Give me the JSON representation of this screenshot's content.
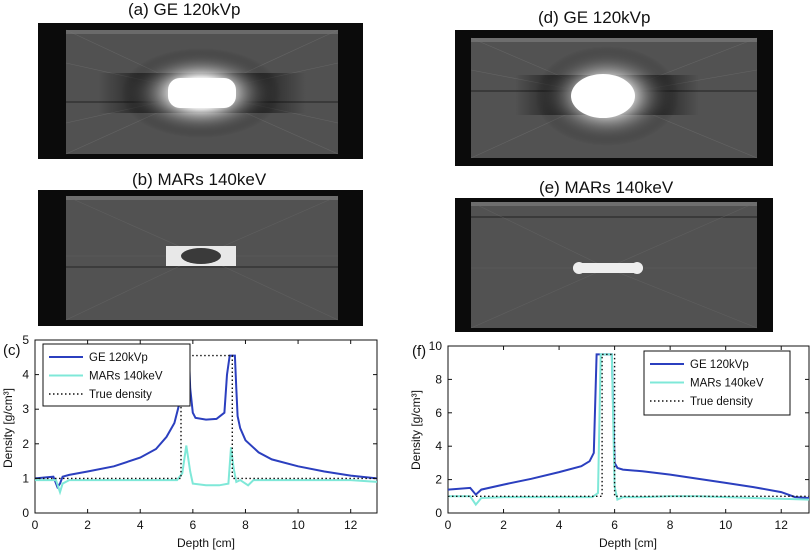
{
  "panels": {
    "a_title": "(a) GE 120kVp",
    "b_title": "(b) MARs 140keV",
    "d_title": "(d) GE 120kVp",
    "e_title": "(e) MARs 140keV"
  },
  "colors": {
    "ge": "#2b3fbf",
    "mars": "#7fe8d8",
    "true": "#111111",
    "ct_background": "#0b0b0b",
    "ct_phantom": "#4d4d4d"
  },
  "chart_data": [
    {
      "type": "line",
      "panel_label": "(c)",
      "xlabel": "Depth [cm]",
      "ylabel": "Density [g/cm³]",
      "xlim": [
        0,
        13
      ],
      "ylim": [
        0,
        5
      ],
      "xticks": [
        0,
        2,
        4,
        6,
        8,
        10,
        12
      ],
      "yticks": [
        0,
        1,
        2,
        3,
        4,
        5
      ],
      "legend_position": "top-left",
      "series": [
        {
          "name": "GE 120kVp",
          "color": "#2b3fbf",
          "style": "solid",
          "x": [
            0,
            0.7,
            0.85,
            0.95,
            1.05,
            1.3,
            2.0,
            3.0,
            4.0,
            4.6,
            5.0,
            5.3,
            5.5,
            5.55,
            5.6,
            5.85,
            5.9,
            6.0,
            6.1,
            6.5,
            6.9,
            7.2,
            7.3,
            7.4,
            7.6,
            7.65,
            7.7,
            7.8,
            8.0,
            8.5,
            9.0,
            10.0,
            11.0,
            12.0,
            13.0
          ],
          "y": [
            1.0,
            1.05,
            0.75,
            0.85,
            1.05,
            1.1,
            1.2,
            1.35,
            1.6,
            1.85,
            2.2,
            2.6,
            3.2,
            4.2,
            4.55,
            4.55,
            3.6,
            2.9,
            2.75,
            2.7,
            2.72,
            2.9,
            4.0,
            4.55,
            4.55,
            3.6,
            2.8,
            2.45,
            2.1,
            1.75,
            1.55,
            1.35,
            1.2,
            1.08,
            1.0
          ]
        },
        {
          "name": "MARs 140keV",
          "color": "#7fe8d8",
          "style": "solid",
          "x": [
            0,
            0.8,
            0.95,
            1.05,
            1.3,
            2.0,
            3.0,
            4.0,
            5.0,
            5.4,
            5.6,
            5.75,
            5.9,
            6.0,
            6.5,
            7.0,
            7.35,
            7.45,
            7.55,
            7.65,
            7.8,
            8.1,
            8.3,
            8.6,
            9.0,
            10.0,
            11.0,
            12.0,
            13.0
          ],
          "y": [
            0.95,
            0.95,
            0.6,
            0.85,
            0.95,
            0.95,
            0.95,
            0.95,
            0.95,
            0.95,
            1.15,
            1.95,
            1.2,
            0.85,
            0.8,
            0.8,
            0.85,
            1.9,
            1.3,
            0.9,
            0.95,
            0.8,
            0.95,
            0.95,
            0.95,
            0.95,
            0.95,
            0.95,
            0.9
          ]
        },
        {
          "name": "True density",
          "color": "#111111",
          "style": "dotted",
          "x": [
            0,
            5.55,
            5.55,
            7.5,
            7.5,
            13
          ],
          "y": [
            1.0,
            1.0,
            4.55,
            4.55,
            1.0,
            1.0
          ]
        }
      ]
    },
    {
      "type": "line",
      "panel_label": "(f)",
      "xlabel": "Depth [cm]",
      "ylabel": "Density [g/cm³]",
      "xlim": [
        0,
        13
      ],
      "ylim": [
        0,
        10
      ],
      "xticks": [
        0,
        2,
        4,
        6,
        8,
        10,
        12
      ],
      "yticks": [
        0,
        2,
        4,
        6,
        8,
        10
      ],
      "legend_position": "top-right",
      "series": [
        {
          "name": "GE 120kVp",
          "color": "#2b3fbf",
          "style": "solid",
          "x": [
            0,
            0.8,
            1.0,
            1.2,
            2.0,
            3.0,
            4.0,
            4.8,
            5.1,
            5.25,
            5.35,
            5.9,
            6.0,
            6.1,
            6.3,
            7.0,
            8.0,
            9.0,
            10.0,
            11.0,
            12.0,
            12.5,
            13.0
          ],
          "y": [
            1.4,
            1.5,
            1.1,
            1.4,
            1.7,
            2.05,
            2.45,
            2.8,
            3.1,
            3.6,
            9.5,
            9.5,
            3.0,
            2.7,
            2.6,
            2.5,
            2.3,
            2.05,
            1.8,
            1.55,
            1.25,
            0.95,
            0.9
          ]
        },
        {
          "name": "MARs 140keV",
          "color": "#7fe8d8",
          "style": "solid",
          "x": [
            0,
            0.8,
            1.0,
            1.2,
            2.0,
            4.0,
            5.2,
            5.4,
            5.5,
            5.9,
            6.0,
            6.1,
            6.3,
            7.0,
            8.0,
            9.0,
            10.0,
            11.0,
            12.0,
            13.0
          ],
          "y": [
            1.0,
            1.0,
            0.5,
            0.9,
            0.95,
            0.95,
            0.95,
            1.2,
            9.5,
            9.5,
            1.6,
            0.8,
            0.95,
            0.95,
            1.0,
            1.0,
            0.95,
            0.9,
            0.85,
            0.8
          ]
        },
        {
          "name": "True density",
          "color": "#111111",
          "style": "dotted",
          "x": [
            0,
            5.55,
            5.55,
            6.0,
            6.0,
            13
          ],
          "y": [
            1.0,
            1.0,
            9.5,
            9.5,
            1.0,
            1.0
          ]
        }
      ]
    }
  ]
}
